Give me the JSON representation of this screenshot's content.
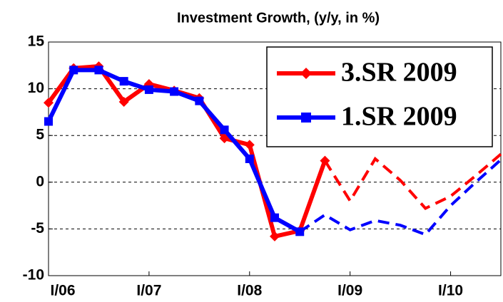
{
  "chart_data": {
    "type": "line",
    "title": "Investment Growth, (y/y, in %)",
    "categories": [
      "I/06",
      null,
      null,
      null,
      "I/07",
      null,
      null,
      null,
      "I/08",
      null,
      null,
      null,
      "I/09",
      null,
      null,
      null,
      "I/10",
      null,
      null
    ],
    "ylim": [
      -10,
      15
    ],
    "yticks": [
      -10,
      -5,
      0,
      5,
      10,
      15
    ],
    "grid": true,
    "legend": "upper right",
    "series": [
      {
        "name": "3.SR 2009",
        "color": "#ff0000",
        "marker": "diamond",
        "values": [
          8.5,
          12.2,
          12.4,
          8.6,
          10.5,
          9.8,
          9.0,
          4.7,
          4.0,
          -5.8,
          -5.2,
          2.3,
          null,
          null,
          null,
          null,
          null,
          null,
          null
        ],
        "projection": [
          null,
          null,
          null,
          null,
          null,
          null,
          null,
          null,
          null,
          null,
          null,
          2.3,
          -2.0,
          2.5,
          0.2,
          -2.8,
          -1.5,
          0.7,
          3.0
        ]
      },
      {
        "name": "1.SR 2009",
        "color": "#0000ff",
        "marker": "square",
        "values": [
          6.5,
          12.0,
          12.0,
          10.8,
          9.9,
          9.7,
          8.7,
          5.6,
          2.5,
          -3.8,
          -5.3,
          null,
          null,
          null,
          null,
          null,
          null,
          null,
          null
        ],
        "projection": [
          null,
          null,
          null,
          null,
          null,
          null,
          null,
          null,
          null,
          null,
          -5.3,
          -3.5,
          -5.1,
          -4.1,
          -4.6,
          -5.6,
          -2.5,
          0.0,
          2.4
        ]
      }
    ]
  }
}
